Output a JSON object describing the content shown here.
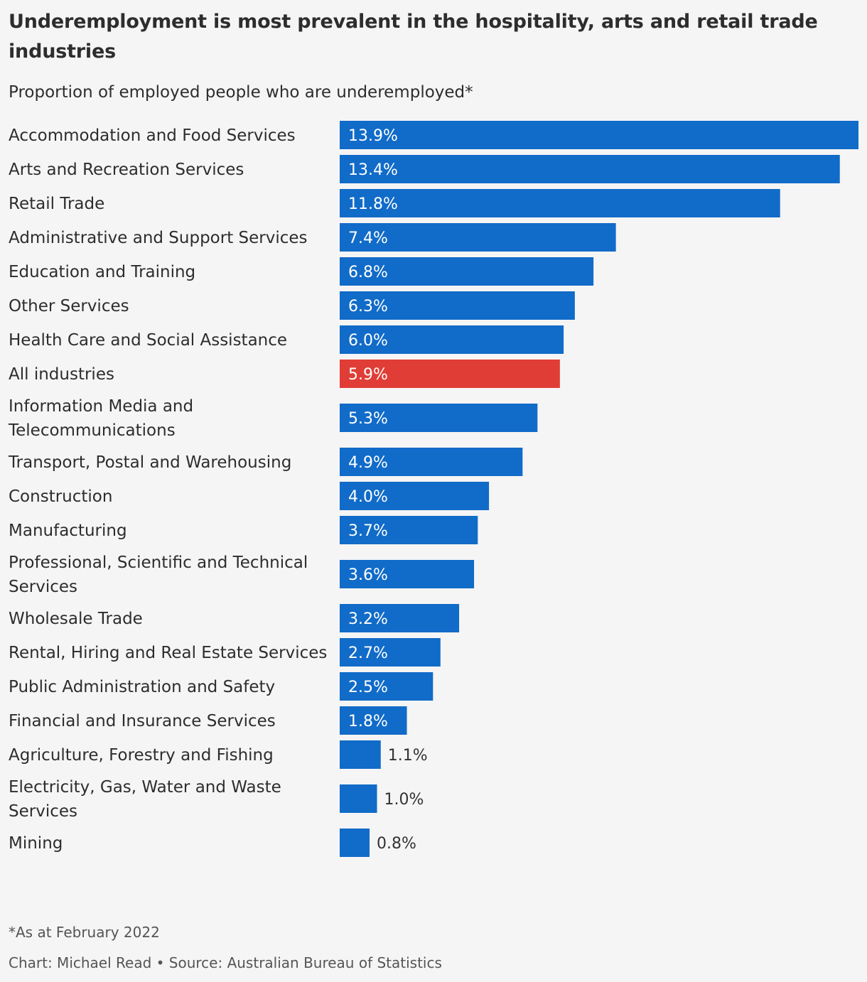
{
  "chart_data": {
    "type": "bar",
    "orientation": "horizontal",
    "title": "Underemployment is most prevalent in the hospitality, arts and retail trade industries",
    "subtitle": "Proportion of employed people who are underemployed*",
    "unit": "%",
    "categories": [
      "Accommodation and Food Services",
      "Arts and Recreation Services",
      "Retail Trade",
      "Administrative and Support Services",
      "Education and Training",
      "Other Services",
      "Health Care and Social Assistance",
      "All industries",
      "Information Media and Telecommunications",
      "Transport, Postal and Warehousing",
      "Construction",
      "Manufacturing",
      "Professional, Scientific and Technical Services",
      "Wholesale Trade",
      "Rental, Hiring and Real Estate Services",
      "Public Administration and Safety",
      "Financial and Insurance Services",
      "Agriculture, Forestry and Fishing",
      "Electricity, Gas, Water and Waste Services",
      "Mining"
    ],
    "values": [
      13.9,
      13.4,
      11.8,
      7.4,
      6.8,
      6.3,
      6.0,
      5.9,
      5.3,
      4.9,
      4.0,
      3.7,
      3.6,
      3.2,
      2.7,
      2.5,
      1.8,
      1.1,
      1.0,
      0.8
    ],
    "value_labels": [
      "13.9%",
      "13.4%",
      "11.8%",
      "7.4%",
      "6.8%",
      "6.3%",
      "6.0%",
      "5.9%",
      "5.3%",
      "4.9%",
      "4.0%",
      "3.7%",
      "3.6%",
      "3.2%",
      "2.7%",
      "2.5%",
      "1.8%",
      "1.1%",
      "1.0%",
      "0.8%"
    ],
    "highlight_category": "All industries",
    "colors": {
      "bar": "#116bc8",
      "highlight": "#e03d36",
      "label_inside": "#ffffff",
      "label_outside": "#333333"
    },
    "xlim": [
      0,
      13.9
    ],
    "grid": false,
    "legend": "none"
  },
  "footer": {
    "note": "*As at February 2022",
    "credit": "Chart: Michael Read • Source: Australian Bureau of Statistics"
  }
}
